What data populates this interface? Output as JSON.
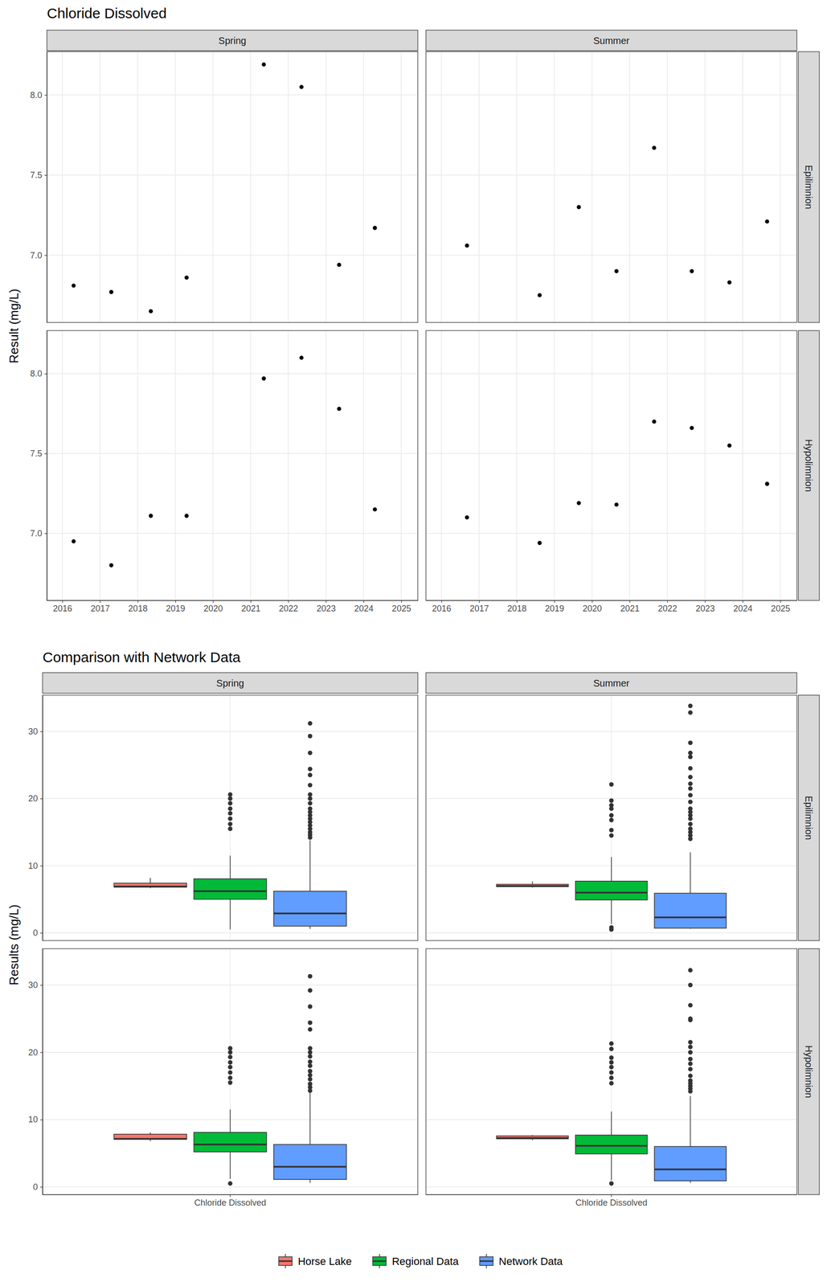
{
  "chart_data": [
    {
      "type": "scatter",
      "title": "Chloride Dissolved",
      "y_label": "Result (mg/L)",
      "columns": [
        "Spring",
        "Summer"
      ],
      "rows": [
        "Epilimnion",
        "Hypolimnion"
      ],
      "xlim": [
        2015.59,
        2025.44
      ],
      "xticks": [
        2016,
        2017,
        2018,
        2019,
        2020,
        2021,
        2022,
        2023,
        2024,
        2025
      ],
      "ylim": [
        6.58,
        8.27
      ],
      "yticks": [
        {
          "value": 7,
          "label": "7.0"
        },
        {
          "value": 7.5,
          "label": "7.5"
        },
        {
          "value": 8,
          "label": "8.0"
        }
      ],
      "grid": true,
      "color": "#000000",
      "marker": "circle",
      "panels": [
        [
          {
            "x": [
              2016.3,
              2017.3,
              2018.35,
              2019.3,
              2021.35,
              2022.35,
              2023.35,
              2024.3
            ],
            "values": [
              6.81,
              6.77,
              6.65,
              6.86,
              8.19,
              8.05,
              6.94,
              7.17
            ]
          },
          {
            "x": [
              2016.68,
              2018.61,
              2019.65,
              2020.65,
              2021.65,
              2022.65,
              2023.65,
              2024.65
            ],
            "values": [
              7.06,
              6.75,
              7.3,
              6.9,
              7.67,
              6.9,
              6.83,
              7.21
            ]
          }
        ],
        [
          {
            "x": [
              2016.3,
              2017.3,
              2018.35,
              2019.3,
              2021.35,
              2022.35,
              2023.35,
              2024.3
            ],
            "values": [
              6.95,
              6.8,
              7.11,
              7.11,
              7.97,
              8.1,
              7.78,
              7.15
            ]
          },
          {
            "x": [
              2016.68,
              2018.61,
              2019.65,
              2020.65,
              2021.65,
              2022.65,
              2023.65,
              2024.65
            ],
            "values": [
              7.1,
              6.94,
              7.19,
              7.18,
              7.7,
              7.66,
              7.55,
              7.31
            ]
          }
        ]
      ]
    },
    {
      "type": "box",
      "title": "Comparison with Network Data",
      "y_label": "Results (mg/L)",
      "categories": [
        "Chloride Dissolved"
      ],
      "columns": [
        "Spring",
        "Summer"
      ],
      "rows": [
        "Epilimnion",
        "Hypolimnion"
      ],
      "ylim": [
        -1.15,
        35.4
      ],
      "yticks": [
        0,
        10,
        20,
        30
      ],
      "grid": true,
      "legend": "bottom",
      "series": [
        {
          "name": "Horse Lake",
          "color": "#F8766D"
        },
        {
          "name": "Regional Data",
          "color": "#00BA38"
        },
        {
          "name": "Network Data",
          "color": "#619CFF"
        }
      ],
      "panels": [
        [
          {
            "boxes": [
              {
                "min": 6.65,
                "q1": 6.8,
                "median": 6.9,
                "q3": 7.4,
                "max": 8.19
              },
              {
                "min": 0.5,
                "q1": 5.0,
                "median": 6.2,
                "q3": 8.05,
                "max": 11.5,
                "outliers": [
                  15.5,
                  16.2,
                  17.0,
                  17.8,
                  18.5,
                  19.3,
                  20.0,
                  20.6
                ]
              },
              {
                "min": 0.6,
                "q1": 1.0,
                "median": 2.9,
                "q3": 6.2,
                "max": 13.8,
                "outliers": [
                  14.2,
                  14.6,
                  15.0,
                  15.5,
                  16.0,
                  16.5,
                  17.0,
                  17.5,
                  18.0,
                  18.5,
                  19.3,
                  20.0,
                  20.6,
                  22.0,
                  23.5,
                  24.4,
                  26.8,
                  29.3,
                  31.2
                ]
              }
            ]
          },
          {
            "boxes": [
              {
                "min": 6.75,
                "q1": 6.88,
                "median": 6.98,
                "q3": 7.23,
                "max": 7.67
              },
              {
                "min": 1.3,
                "q1": 4.9,
                "median": 6.0,
                "q3": 7.7,
                "max": 11.3,
                "outliers": [
                  0.5,
                  0.8,
                  14.5,
                  15.3,
                  16.8,
                  17.5,
                  18.5,
                  19.0,
                  19.7,
                  22.1
                ]
              },
              {
                "min": 0.6,
                "q1": 0.7,
                "median": 2.3,
                "q3": 5.9,
                "max": 12.0,
                "outliers": [
                  14.0,
                  14.5,
                  15.0,
                  15.5,
                  16.2,
                  17.0,
                  17.5,
                  18.0,
                  18.5,
                  19.5,
                  20.5,
                  21.5,
                  22.2,
                  23.2,
                  24.5,
                  26.2,
                  26.8,
                  28.3,
                  32.8,
                  33.8
                ]
              }
            ]
          }
        ],
        [
          {
            "boxes": [
              {
                "min": 6.8,
                "q1": 7.07,
                "median": 7.13,
                "q3": 7.83,
                "max": 8.1
              },
              {
                "min": 1.2,
                "q1": 5.2,
                "median": 6.3,
                "q3": 8.1,
                "max": 11.5,
                "outliers": [
                  0.5,
                  15.5,
                  16.2,
                  17.0,
                  17.8,
                  18.5,
                  19.3,
                  20.0,
                  20.6
                ]
              },
              {
                "min": 0.6,
                "q1": 1.1,
                "median": 3.0,
                "q3": 6.3,
                "max": 14.0,
                "outliers": [
                  14.3,
                  14.8,
                  15.3,
                  16.0,
                  16.6,
                  17.2,
                  18.0,
                  18.6,
                  19.4,
                  20.0,
                  20.6,
                  23.4,
                  24.4,
                  26.8,
                  29.2,
                  31.3
                ]
              }
            ]
          },
          {
            "boxes": [
              {
                "min": 6.94,
                "q1": 7.14,
                "median": 7.25,
                "q3": 7.58,
                "max": 7.7
              },
              {
                "min": 1.0,
                "q1": 4.9,
                "median": 6.1,
                "q3": 7.7,
                "max": 11.2,
                "outliers": [
                  0.5,
                  15.4,
                  16.2,
                  17.0,
                  17.8,
                  18.5,
                  19.2,
                  20.5,
                  21.3
                ]
              },
              {
                "min": 0.6,
                "q1": 0.9,
                "median": 2.6,
                "q3": 6.0,
                "max": 13.5,
                "outliers": [
                  14.2,
                  14.6,
                  15.0,
                  15.4,
                  15.8,
                  16.5,
                  17.5,
                  18.3,
                  19.0,
                  20.0,
                  20.8,
                  21.5,
                  24.8,
                  25.0,
                  27.0,
                  30.0,
                  32.2
                ]
              }
            ]
          }
        ]
      ]
    }
  ]
}
